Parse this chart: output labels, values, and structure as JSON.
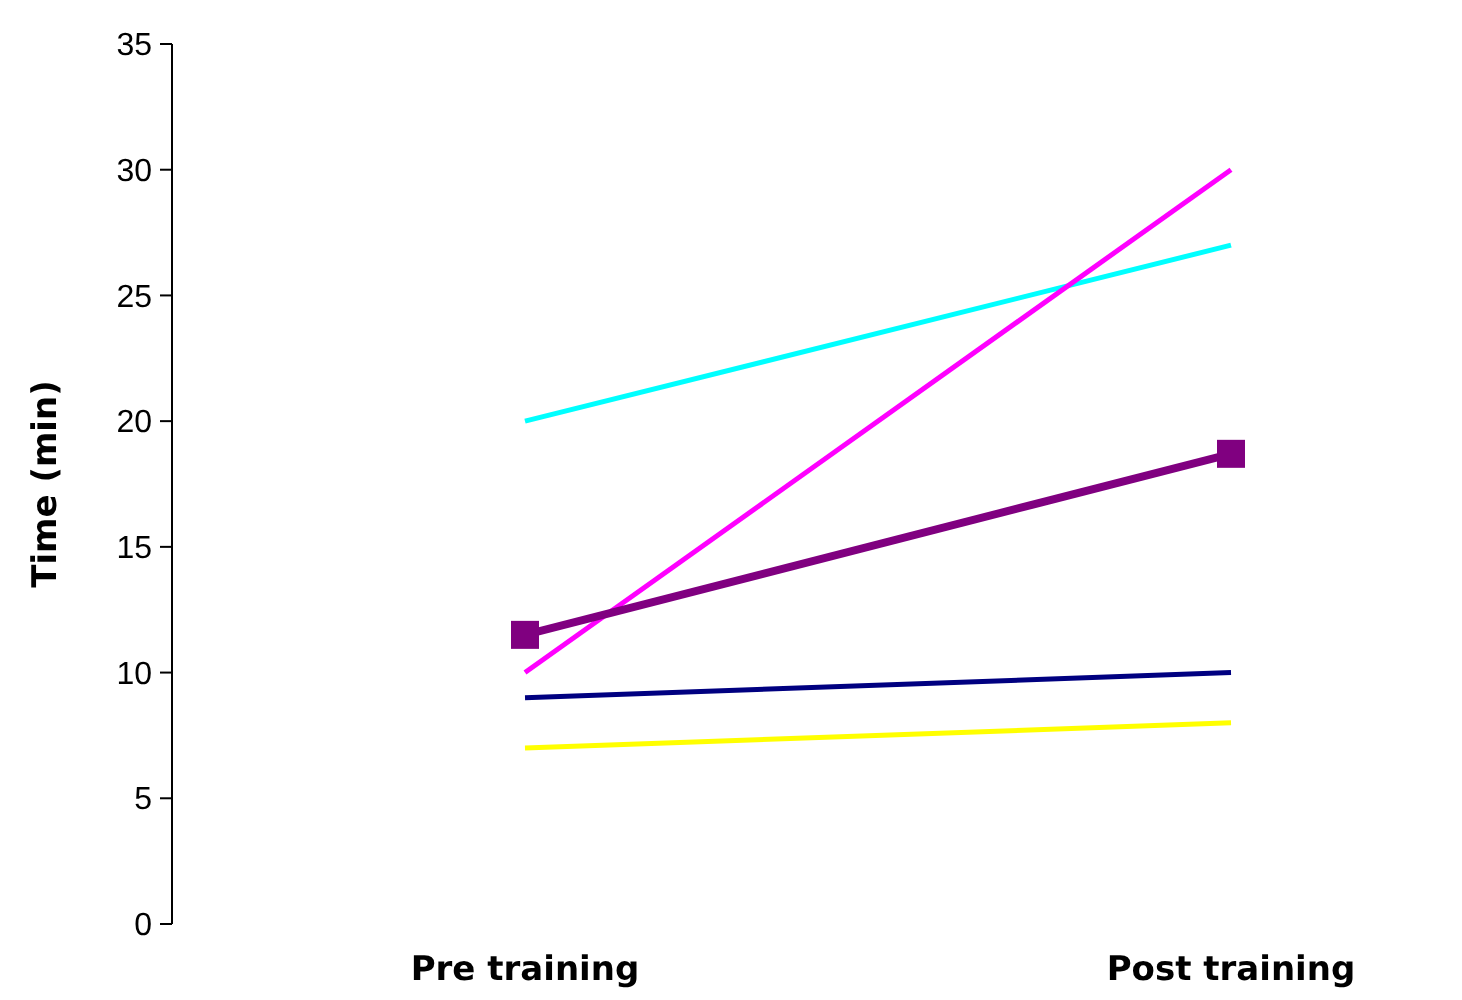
{
  "chart_data": {
    "type": "line",
    "ylabel": "Time (min)",
    "categories": [
      "Pre training",
      "Post training"
    ],
    "series": [
      {
        "color": "#00ffff",
        "values": [
          20,
          27
        ],
        "marker": "none"
      },
      {
        "color": "#ff00ff",
        "values": [
          10,
          30
        ],
        "marker": "none"
      },
      {
        "color": "#000080",
        "values": [
          9,
          10
        ],
        "marker": "none"
      },
      {
        "color": "#ffff00",
        "values": [
          7,
          8
        ],
        "marker": "none"
      },
      {
        "color": "#800080",
        "values": [
          11.5,
          18.7
        ],
        "marker": "square"
      }
    ],
    "ylim": [
      0,
      35
    ],
    "yticks": [
      0,
      5,
      10,
      15,
      20,
      25,
      30,
      35
    ],
    "grid": false,
    "line_style": "solid"
  }
}
